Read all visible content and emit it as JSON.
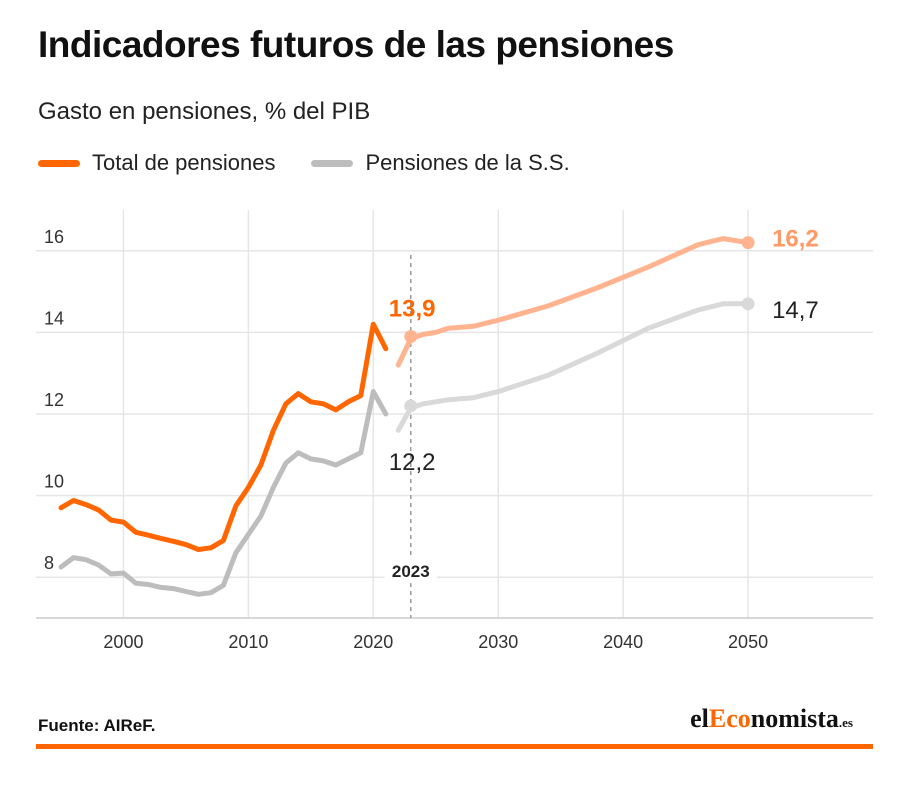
{
  "header": {
    "title": "Indicadores futuros de las pensiones",
    "subtitle": "Gasto en pensiones, % del PIB"
  },
  "legend": {
    "items": [
      {
        "label": "Total de pensiones",
        "color": "#ff6600"
      },
      {
        "label": "Pensiones de la S.S.",
        "color": "#bdbdbd"
      }
    ]
  },
  "footer": {
    "source": "Fuente: AIReF.",
    "logo": {
      "prefix": "el",
      "accent": "Eco",
      "rest": "nomista",
      "suffix": ".es"
    },
    "rule_color": "#ff6600"
  },
  "chart_data": {
    "type": "line",
    "title": "Indicadores futuros de las pensiones",
    "subtitle": "Gasto en pensiones, % del PIB",
    "xlabel": "",
    "ylabel": "",
    "xlim": [
      1993,
      2060
    ],
    "ylim": [
      7,
      17
    ],
    "x_ticks": [
      2000,
      2010,
      2020,
      2030,
      2040,
      2050
    ],
    "y_ticks": [
      8,
      10,
      12,
      14,
      16
    ],
    "grid": true,
    "legend_position": "top-left",
    "marker_year": 2023,
    "marker_label": "2023",
    "series": [
      {
        "name": "Total de pensiones",
        "color": "#ff6600",
        "projection_color": "#ffb48f",
        "historical": [
          [
            1995,
            9.7
          ],
          [
            1996,
            9.88
          ],
          [
            1997,
            9.78
          ],
          [
            1998,
            9.65
          ],
          [
            1999,
            9.4
          ],
          [
            2000,
            9.35
          ],
          [
            2001,
            9.1
          ],
          [
            2002,
            9.03
          ],
          [
            2003,
            8.95
          ],
          [
            2004,
            8.88
          ],
          [
            2005,
            8.8
          ],
          [
            2006,
            8.68
          ],
          [
            2007,
            8.72
          ],
          [
            2008,
            8.9
          ],
          [
            2009,
            9.75
          ],
          [
            2010,
            10.2
          ],
          [
            2011,
            10.75
          ],
          [
            2012,
            11.6
          ],
          [
            2013,
            12.25
          ],
          [
            2014,
            12.5
          ],
          [
            2015,
            12.3
          ],
          [
            2016,
            12.25
          ],
          [
            2017,
            12.1
          ],
          [
            2018,
            12.3
          ],
          [
            2019,
            12.45
          ],
          [
            2020,
            14.2
          ],
          [
            2021,
            13.6
          ]
        ],
        "projection": [
          [
            2022,
            13.2
          ],
          [
            2023,
            13.85
          ],
          [
            2024,
            13.95
          ],
          [
            2025,
            14.0
          ],
          [
            2026,
            14.1
          ],
          [
            2028,
            14.15
          ],
          [
            2030,
            14.3
          ],
          [
            2034,
            14.65
          ],
          [
            2038,
            15.1
          ],
          [
            2042,
            15.6
          ],
          [
            2046,
            16.15
          ],
          [
            2048,
            16.3
          ],
          [
            2050,
            16.2
          ]
        ],
        "labels": [
          {
            "year": 2023,
            "value": 13.9,
            "text": "13,9"
          },
          {
            "year": 2050,
            "value": 16.2,
            "text": "16,2"
          }
        ]
      },
      {
        "name": "Pensiones de la S.S.",
        "color": "#bdbdbd",
        "projection_color": "#d9d9d9",
        "historical": [
          [
            1995,
            8.25
          ],
          [
            1996,
            8.48
          ],
          [
            1997,
            8.43
          ],
          [
            1998,
            8.3
          ],
          [
            1999,
            8.08
          ],
          [
            2000,
            8.1
          ],
          [
            2001,
            7.85
          ],
          [
            2002,
            7.82
          ],
          [
            2003,
            7.75
          ],
          [
            2004,
            7.72
          ],
          [
            2005,
            7.65
          ],
          [
            2006,
            7.58
          ],
          [
            2007,
            7.62
          ],
          [
            2008,
            7.8
          ],
          [
            2009,
            8.6
          ],
          [
            2010,
            9.05
          ],
          [
            2011,
            9.5
          ],
          [
            2012,
            10.2
          ],
          [
            2013,
            10.8
          ],
          [
            2014,
            11.05
          ],
          [
            2015,
            10.9
          ],
          [
            2016,
            10.85
          ],
          [
            2017,
            10.75
          ],
          [
            2018,
            10.9
          ],
          [
            2019,
            11.05
          ],
          [
            2020,
            12.55
          ],
          [
            2021,
            12.0
          ]
        ],
        "projection": [
          [
            2022,
            11.6
          ],
          [
            2023,
            12.15
          ],
          [
            2024,
            12.25
          ],
          [
            2025,
            12.3
          ],
          [
            2026,
            12.35
          ],
          [
            2028,
            12.4
          ],
          [
            2030,
            12.55
          ],
          [
            2034,
            12.95
          ],
          [
            2038,
            13.5
          ],
          [
            2042,
            14.1
          ],
          [
            2046,
            14.55
          ],
          [
            2048,
            14.7
          ],
          [
            2050,
            14.7
          ]
        ],
        "labels": [
          {
            "year": 2023,
            "value": 12.2,
            "text": "12,2"
          },
          {
            "year": 2050,
            "value": 14.7,
            "text": "14,7"
          }
        ]
      }
    ]
  }
}
